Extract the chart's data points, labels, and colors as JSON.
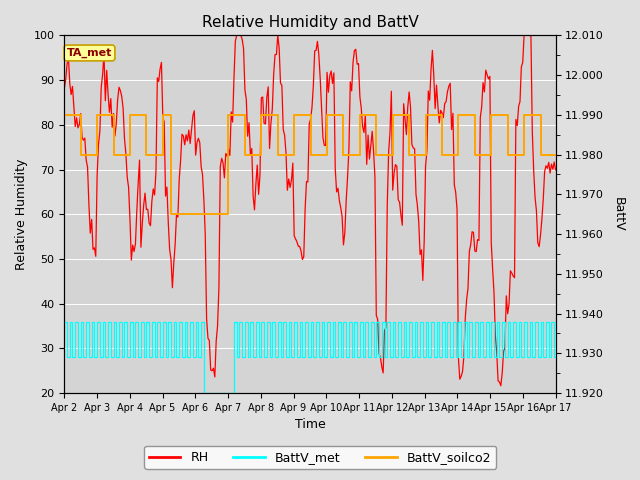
{
  "title": "Relative Humidity and BattV",
  "ylabel_left": "Relative Humidity",
  "ylabel_right": "BattV",
  "xlabel": "Time",
  "ylim_left": [
    20,
    100
  ],
  "ylim_right": [
    11.92,
    12.01
  ],
  "fig_bg_color": "#e0e0e0",
  "plot_bg_color": "#d4d4d4",
  "legend_items": [
    "RH",
    "BattV_met",
    "BattV_soilco2"
  ],
  "legend_colors": [
    "red",
    "cyan",
    "orange"
  ],
  "annotation_text": "TA_met",
  "annotation_bg": "#ffff99",
  "annotation_border": "#c8a000",
  "tick_label_dates": [
    "Apr 2",
    "Apr 3",
    "Apr 4",
    "Apr 5",
    "Apr 6",
    "Apr 7",
    "Apr 8",
    "Apr 9",
    "Apr 10",
    "Apr 11",
    "Apr 12",
    "Apr 13",
    "Apr 14",
    "Apr 15",
    "Apr 16",
    "Apr 17"
  ],
  "rh_color": "red",
  "battv_met_color": "cyan",
  "battv_soilco2_color": "orange",
  "yticks_left": [
    20,
    30,
    40,
    50,
    60,
    70,
    80,
    90,
    100
  ],
  "yticks_right": [
    11.92,
    11.93,
    11.94,
    11.95,
    11.96,
    11.97,
    11.98,
    11.99,
    12.0,
    12.01
  ]
}
